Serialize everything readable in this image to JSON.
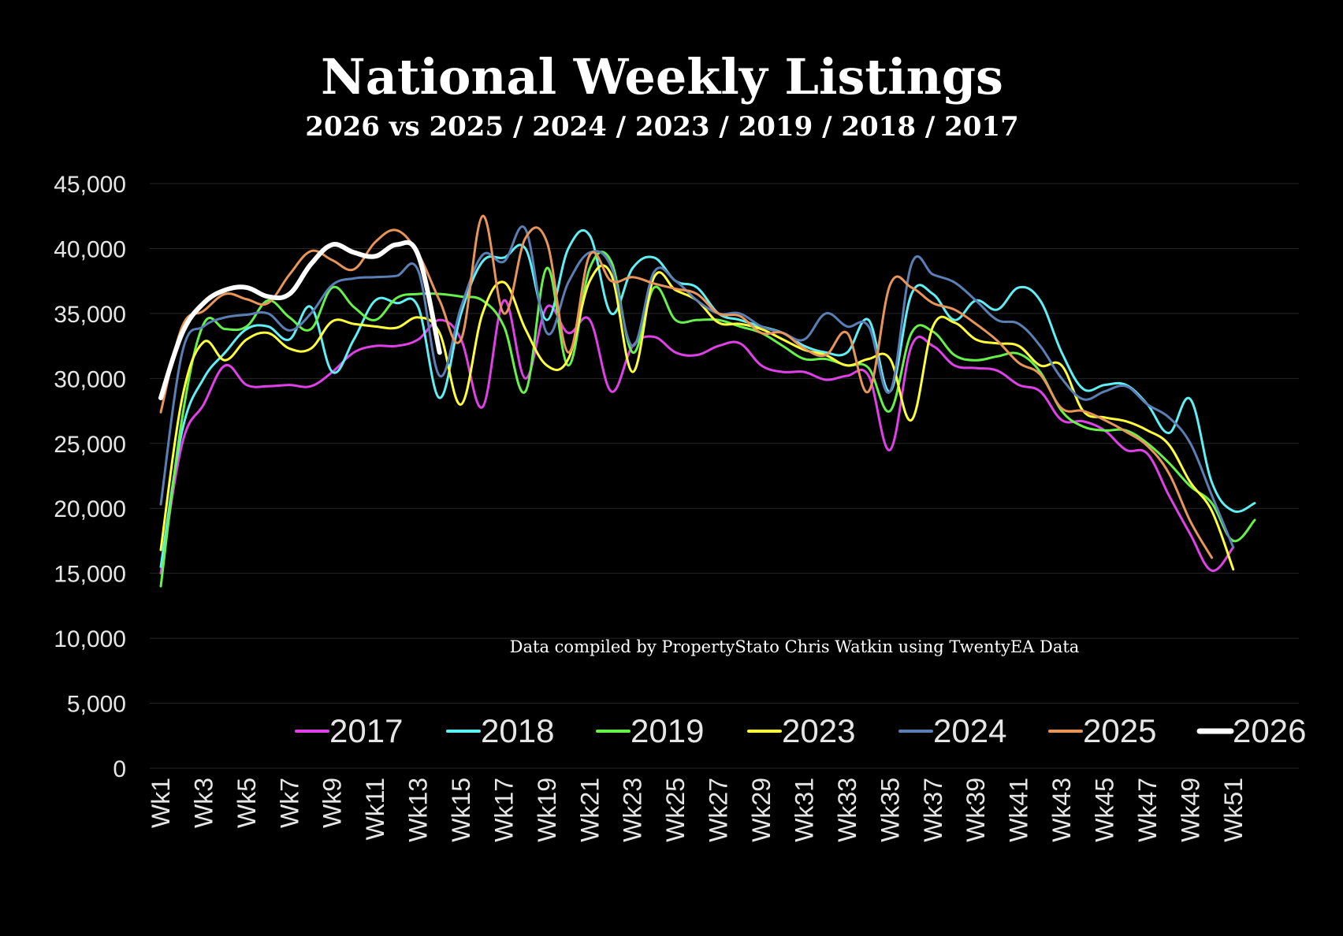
{
  "chart_data": {
    "type": "line",
    "title": "National Weekly Listings",
    "subtitle": "2026 vs 2025 / 2024 / 2023 / 2019 / 2018 / 2017",
    "annotation": "Data compiled by PropertyStato Chris Watkin using TwentyEA Data",
    "ylim": [
      0,
      45000
    ],
    "yticks": [
      "0",
      "5,000",
      "10,000",
      "15,000",
      "20,000",
      "25,000",
      "30,000",
      "35,000",
      "40,000",
      "45,000"
    ],
    "xtick_labels": [
      "Wk1",
      "Wk3",
      "Wk5",
      "Wk7",
      "Wk9",
      "Wk11",
      "Wk13",
      "Wk15",
      "Wk17",
      "Wk19",
      "Wk21",
      "Wk23",
      "Wk25",
      "Wk27",
      "Wk29",
      "Wk31",
      "Wk33",
      "Wk35",
      "Wk37",
      "Wk39",
      "Wk41",
      "Wk43",
      "Wk45",
      "Wk47",
      "Wk49",
      "Wk51"
    ],
    "num_weeks": 52,
    "grid": true,
    "legend_position": "bottom-right",
    "series": [
      {
        "name": "2017",
        "color": "#e040e8",
        "values": [
          15000,
          25000,
          28000,
          31000,
          29500,
          29400,
          29500,
          29400,
          30500,
          32000,
          32500,
          32500,
          33000,
          34500,
          33000,
          27800,
          36000,
          30000,
          35500,
          33500,
          34500,
          29000,
          32500,
          33200,
          32000,
          31800,
          32500,
          32700,
          31000,
          30500,
          30500,
          29900,
          30200,
          30200,
          24500,
          32500,
          32500,
          31000,
          30800,
          30600,
          29500,
          29000,
          26800,
          26700,
          26000,
          24500,
          24200,
          21000,
          18000,
          15200,
          17000
        ]
      },
      {
        "name": "2018",
        "color": "#5ff0f5",
        "values": [
          15500,
          26000,
          30000,
          32000,
          33800,
          34000,
          33000,
          35500,
          30500,
          33000,
          36000,
          35800,
          35500,
          28500,
          35000,
          39000,
          39300,
          40000,
          34500,
          40000,
          41000,
          35000,
          38500,
          39300,
          37500,
          37000,
          35000,
          34500,
          34000,
          33500,
          32500,
          32000,
          32000,
          34500,
          29000,
          36500,
          36500,
          34500,
          36000,
          35300,
          37000,
          36000,
          32000,
          29200,
          29500,
          29500,
          28000,
          25800,
          28400,
          22000,
          19800,
          20400
        ]
      },
      {
        "name": "2019",
        "color": "#66f24a",
        "values": [
          14000,
          27000,
          34200,
          33800,
          34000,
          36000,
          34700,
          33800,
          37000,
          35500,
          34500,
          36200,
          36500,
          36500,
          36300,
          36000,
          34000,
          29000,
          38500,
          31000,
          38500,
          39000,
          32000,
          37000,
          34500,
          34500,
          34500,
          34000,
          33500,
          32500,
          31500,
          31500,
          31000,
          30800,
          27500,
          33500,
          33600,
          31800,
          31400,
          31700,
          31900,
          30500,
          27500,
          26300,
          26000,
          26000,
          25000,
          23500,
          21700,
          20400,
          17500,
          19100
        ]
      },
      {
        "name": "2023",
        "color": "#ffff3a",
        "values": [
          16800,
          28500,
          32800,
          31400,
          33000,
          33500,
          32300,
          32300,
          34400,
          34200,
          34000,
          33900,
          34700,
          33500,
          28000,
          35000,
          37400,
          33800,
          31000,
          31500,
          37500,
          38000,
          30500,
          37800,
          36800,
          36000,
          34300,
          34200,
          33800,
          33000,
          32200,
          31800,
          31000,
          31500,
          31500,
          26800,
          34000,
          34300,
          33000,
          32700,
          32500,
          31000,
          31000,
          27500,
          27000,
          26700,
          26000,
          24900,
          22000,
          19800,
          15300
        ]
      },
      {
        "name": "2024",
        "color": "#5a7fb5",
        "values": [
          20300,
          32000,
          34000,
          34700,
          34900,
          35000,
          33700,
          35000,
          37200,
          37700,
          37800,
          37900,
          38300,
          30200,
          35500,
          39500,
          39000,
          41500,
          33500,
          37400,
          39700,
          38600,
          32500,
          38200,
          37500,
          36000,
          35000,
          35000,
          34000,
          33500,
          33000,
          35000,
          34000,
          34000,
          29000,
          38800,
          38000,
          37400,
          36000,
          34500,
          34200,
          32500,
          30000,
          28400,
          29000,
          29400,
          28000,
          27000,
          25000,
          21000,
          17000
        ]
      },
      {
        "name": "2025",
        "color": "#e8955a",
        "values": [
          27400,
          34000,
          35200,
          36500,
          36100,
          35800,
          38000,
          39800,
          39100,
          38400,
          40500,
          41400,
          39600,
          36000,
          33000,
          42500,
          35000,
          40800,
          40500,
          32000,
          39500,
          37500,
          37800,
          37300,
          36900,
          36500,
          35000,
          34800,
          33500,
          33500,
          32300,
          31800,
          33500,
          29000,
          37200,
          37000,
          35800,
          35300,
          34200,
          32900,
          31200,
          30300,
          27700,
          27500,
          26800,
          25900,
          24800,
          22700,
          19000,
          16200
        ]
      },
      {
        "name": "2026",
        "color": "#ffffff",
        "values": [
          28500,
          33500,
          35800,
          36800,
          37000,
          36300,
          36500,
          38800,
          40300,
          39700,
          39400,
          40300,
          39500,
          32000
        ]
      }
    ]
  }
}
